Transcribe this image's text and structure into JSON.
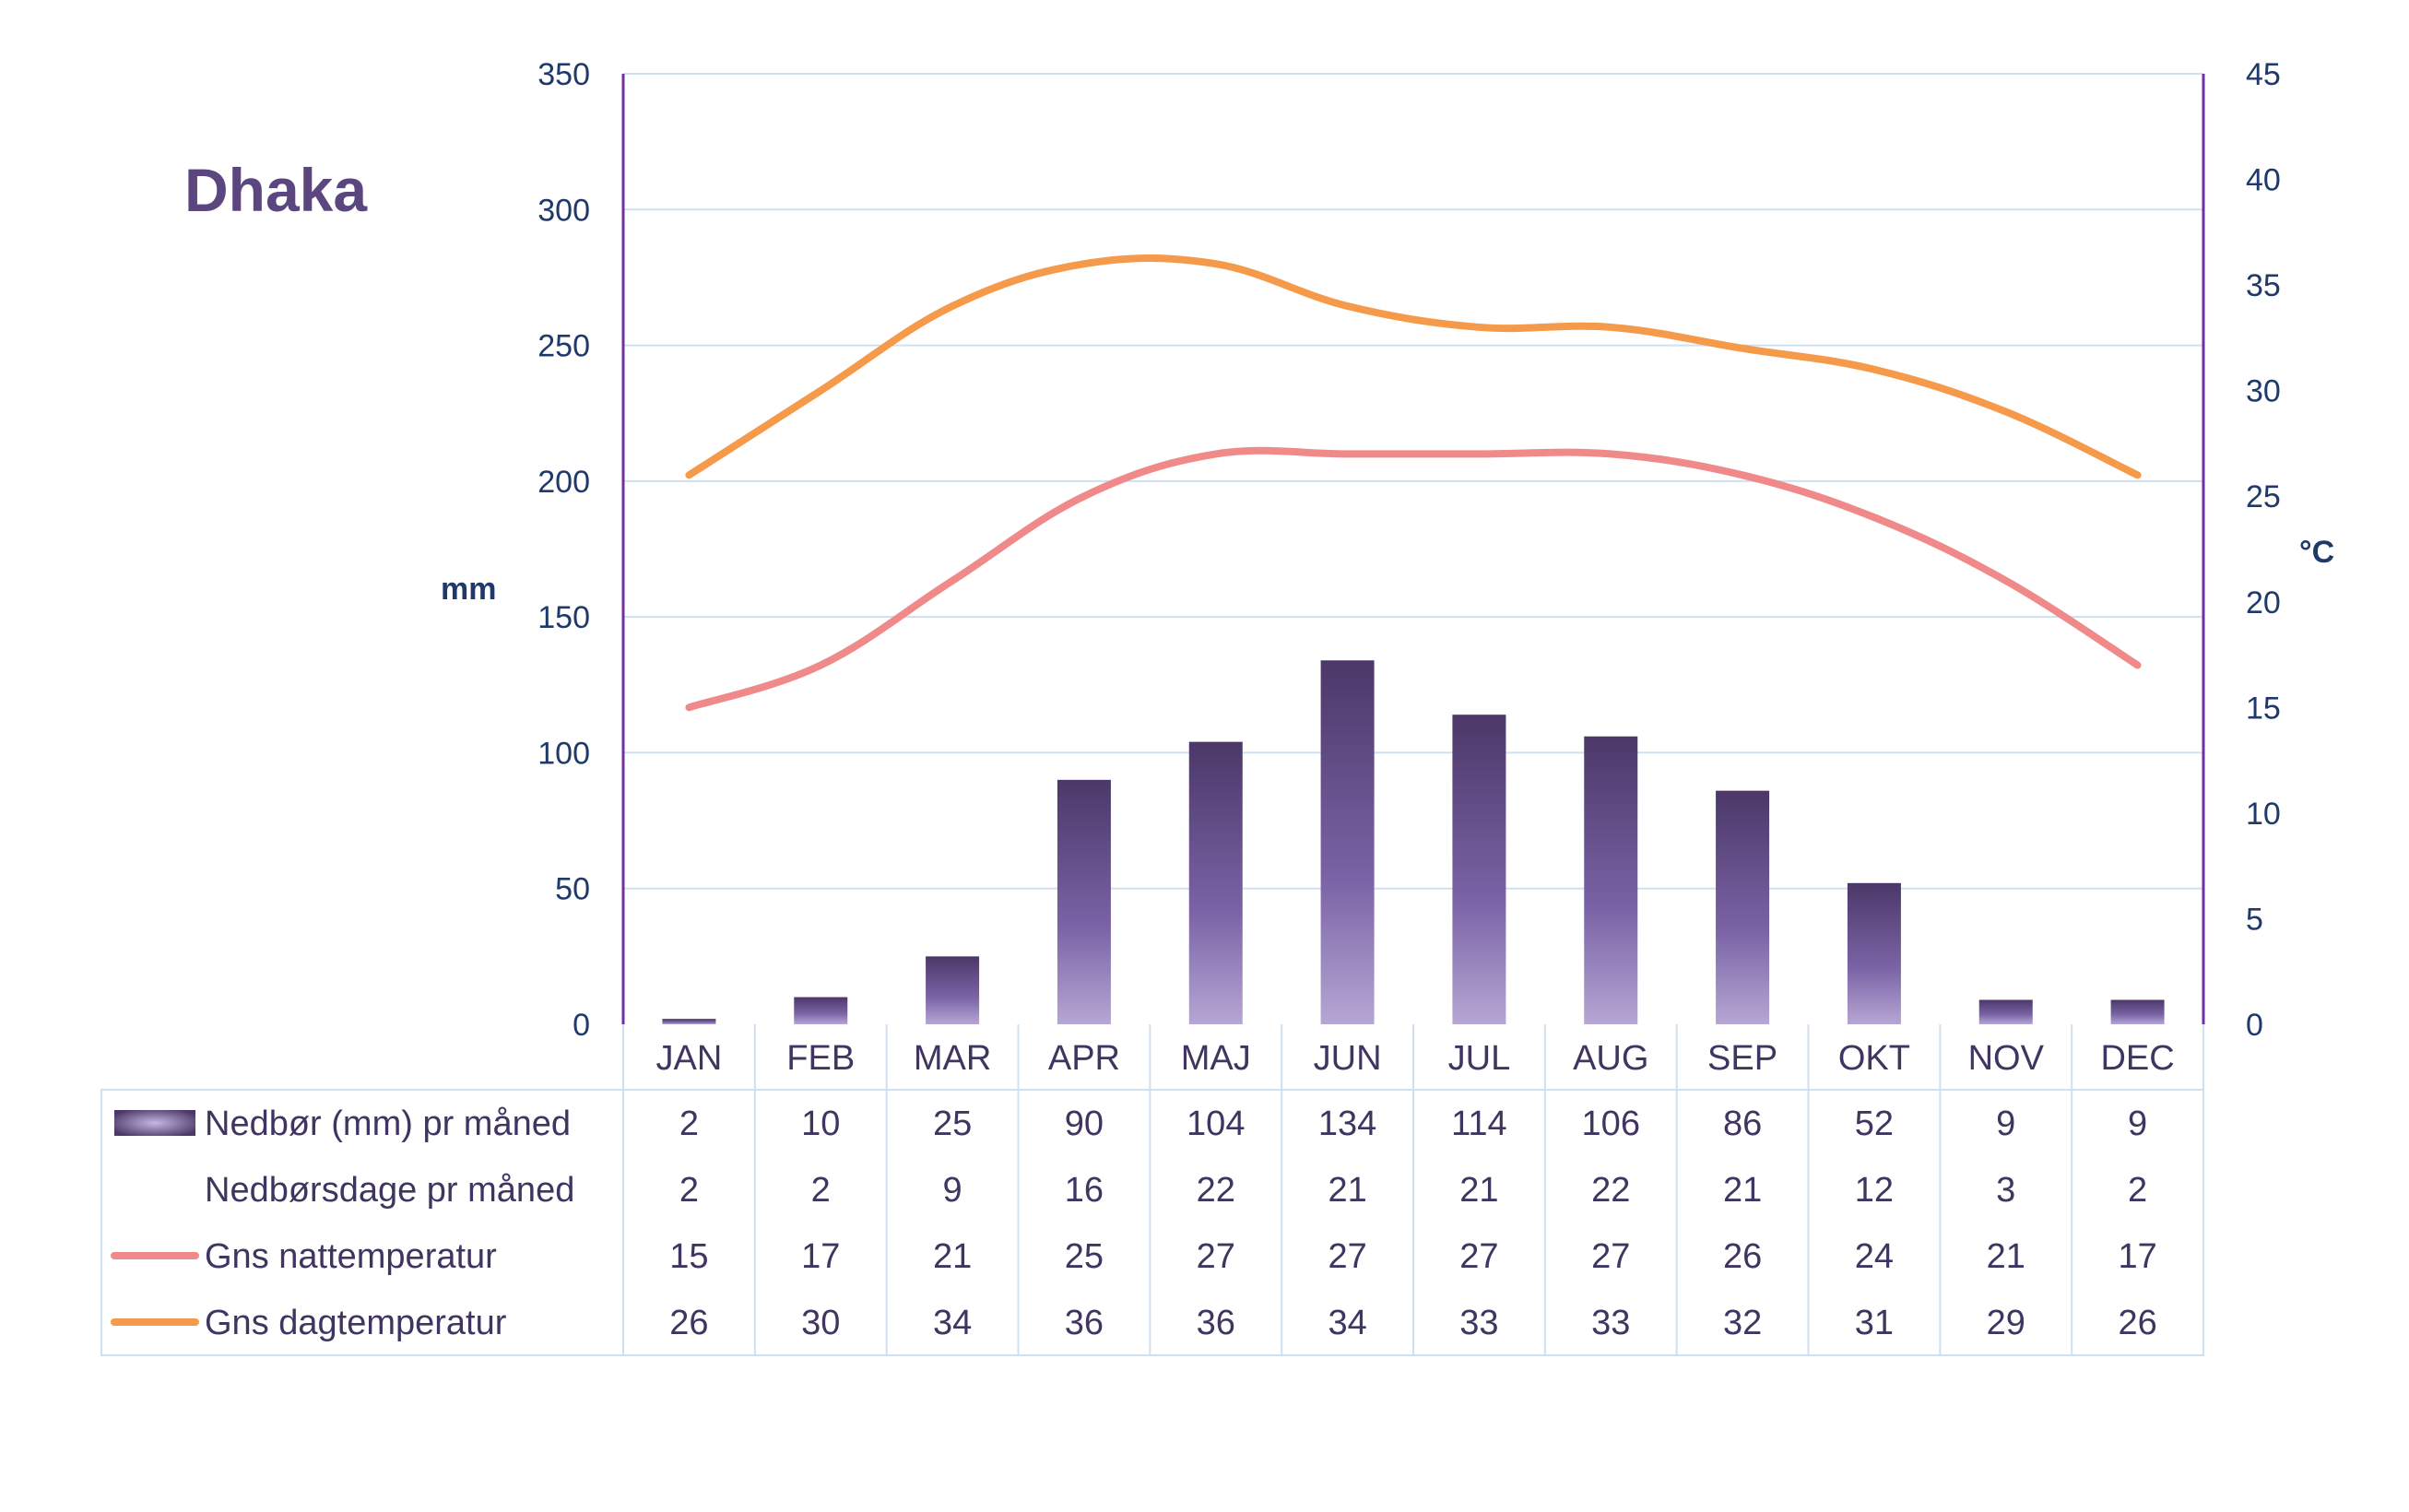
{
  "chart_data": {
    "type": "bar",
    "title": "Dhaka",
    "categories": [
      "JAN",
      "FEB",
      "MAR",
      "APR",
      "MAJ",
      "JUN",
      "JUL",
      "AUG",
      "SEP",
      "OKT",
      "NOV",
      "DEC"
    ],
    "ylabel_left": "mm",
    "ylabel_right": "°C",
    "ylim_left": [
      0,
      350
    ],
    "ylim_right": [
      0,
      45
    ],
    "yticks_left": [
      0,
      50,
      100,
      150,
      200,
      250,
      300,
      350
    ],
    "yticks_right": [
      0,
      5,
      10,
      15,
      20,
      25,
      30,
      35,
      40,
      45
    ],
    "grid": true,
    "series": [
      {
        "name": "Nedbør (mm) pr måned",
        "type": "bar",
        "axis": "left",
        "color": "#4e3a6e",
        "values": [
          2,
          10,
          25,
          90,
          104,
          134,
          114,
          106,
          86,
          52,
          9,
          9
        ]
      },
      {
        "name": "Nedbørsdage pr måned",
        "type": "table",
        "axis": "none",
        "values": [
          2,
          2,
          9,
          16,
          22,
          21,
          21,
          22,
          21,
          12,
          3,
          2
        ]
      },
      {
        "name": "Gns nattemperatur",
        "type": "line",
        "axis": "right",
        "color": "#f08a8a",
        "values": [
          15,
          17,
          21,
          25,
          27,
          27,
          27,
          27,
          26,
          24,
          21,
          17
        ]
      },
      {
        "name": "Gns dagtemperatur",
        "type": "line",
        "axis": "right",
        "color": "#f5994a",
        "values": [
          26,
          30,
          34,
          36,
          36,
          34,
          33,
          33,
          32,
          31,
          29,
          26
        ]
      }
    ]
  },
  "colors": {
    "axis_text": "#1f3a6a",
    "cell_text": "#3f3560",
    "grid": "#cfe0f0",
    "axis_line": "#7030a0",
    "table_border": "#cfe0f0"
  }
}
